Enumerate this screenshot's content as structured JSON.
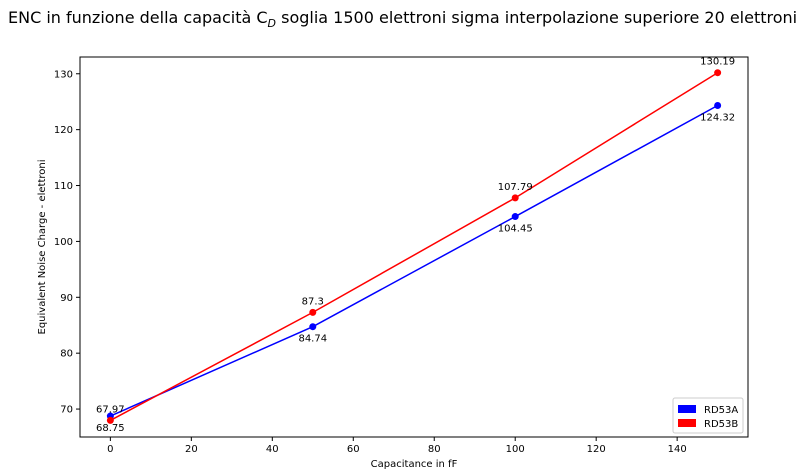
{
  "chart_data": {
    "type": "line",
    "title": "ENC in funzione della capacità C",
    "title_subscript": "D",
    "title_rest": " soglia 1500 elettroni sigma interpolazione superiore 20 elettroni",
    "xlabel": "Capacitance in fF",
    "ylabel": "Equivalent Noise Charge - elettroni",
    "x": [
      0,
      50,
      100,
      150
    ],
    "xlim": [
      -7.5,
      157.5
    ],
    "ylim": [
      65,
      133
    ],
    "xticks": [
      0,
      20,
      40,
      60,
      80,
      100,
      120,
      140
    ],
    "yticks": [
      70,
      80,
      90,
      100,
      110,
      120,
      130
    ],
    "grid": false,
    "legend_position": "lower-right",
    "series": [
      {
        "name": "RD53A",
        "color": "#0000ff",
        "values": [
          68.75,
          84.74,
          104.45,
          124.32
        ],
        "labels": [
          "68.75",
          "84.74",
          "104.45",
          "124.32"
        ],
        "label_position": "below"
      },
      {
        "name": "RD53B",
        "color": "#ff0000",
        "values": [
          67.97,
          87.3,
          107.79,
          130.19
        ],
        "labels": [
          "67.97",
          "87.3",
          "107.79",
          "130.19"
        ],
        "label_position": "above"
      }
    ]
  }
}
